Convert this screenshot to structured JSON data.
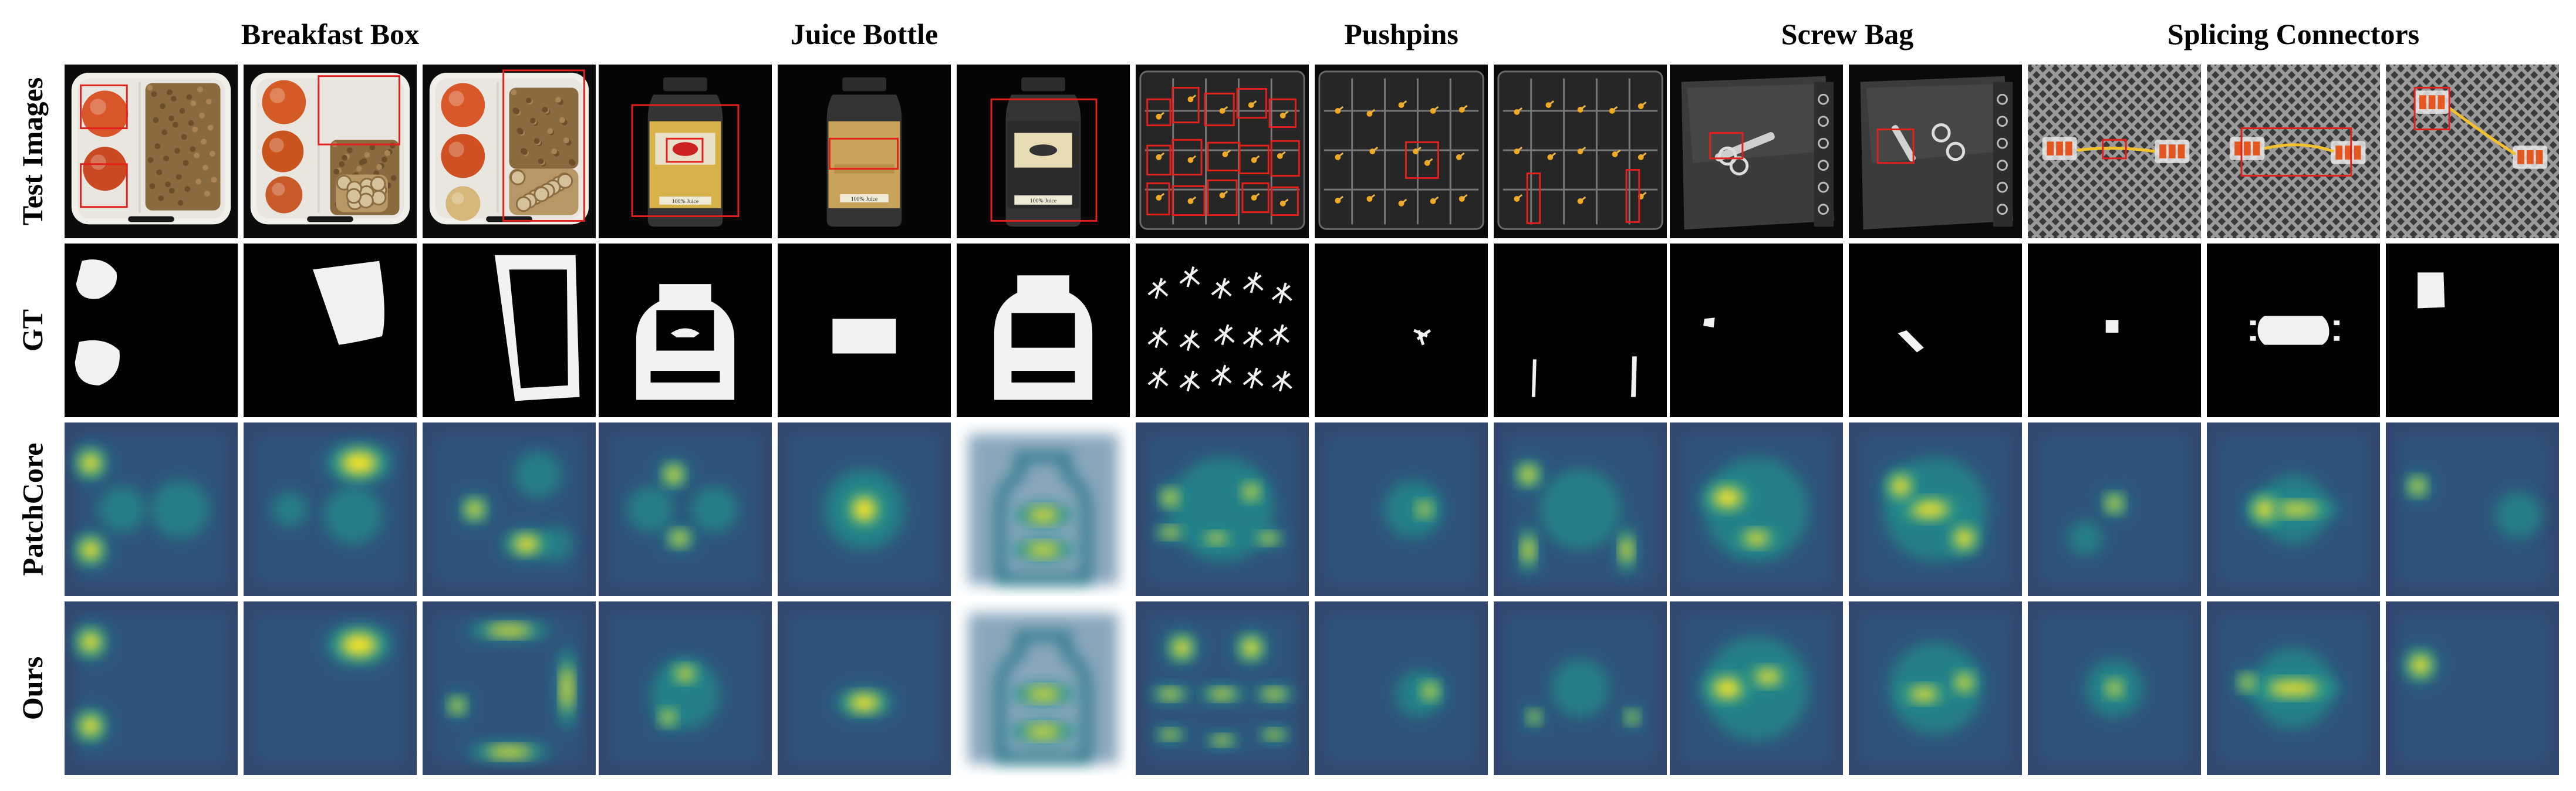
{
  "column_headers": [
    "Breakfast Box",
    "Juice Bottle",
    "Pushpins",
    "Screw Bag",
    "Splicing Connectors"
  ],
  "row_labels": [
    "Test Images",
    "GT",
    "PatchCore",
    "Ours"
  ],
  "bottle_label_text": "100% Juice",
  "colors": {
    "anomaly_box": "#e3201b",
    "heatmap_low": "#440154",
    "heatmap_mid": "#21918c",
    "heatmap_high": "#fde725",
    "mask_fill": "#f2f2f2",
    "background": "#000000"
  },
  "columns": [
    {
      "category": "Breakfast Box"
    },
    {
      "category": "Breakfast Box"
    },
    {
      "category": "Breakfast Box"
    },
    {
      "category": "Juice Bottle"
    },
    {
      "category": "Juice Bottle"
    },
    {
      "category": "Juice Bottle"
    },
    {
      "category": "Pushpins"
    },
    {
      "category": "Pushpins"
    },
    {
      "category": "Pushpins"
    },
    {
      "category": "Screw Bag"
    },
    {
      "category": "Screw Bag"
    },
    {
      "category": "Splicing Connectors"
    },
    {
      "category": "Splicing Connectors"
    },
    {
      "category": "Splicing Connectors"
    }
  ]
}
